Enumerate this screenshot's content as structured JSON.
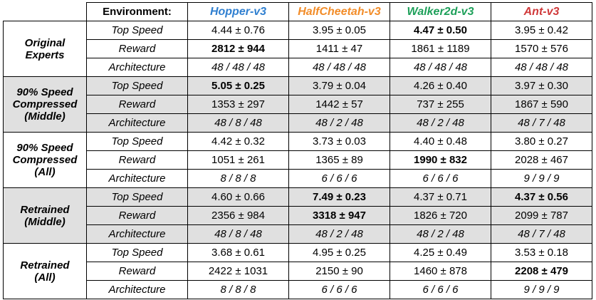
{
  "header": {
    "environment_label": "Environment:",
    "envs": [
      {
        "name": "Hopper-v3",
        "color": "#2f7fd0"
      },
      {
        "name": "HalfCheetah-v3",
        "color": "#f28c28"
      },
      {
        "name": "Walker2d-v3",
        "color": "#1ea05a"
      },
      {
        "name": "Ant-v3",
        "color": "#d0393a"
      }
    ]
  },
  "groups": [
    {
      "label": [
        "Original",
        "Experts"
      ],
      "shaded": false,
      "rows": [
        {
          "metric": "Top Speed",
          "cells": [
            {
              "v": "4.44 ± 0.76"
            },
            {
              "v": "3.95 ± 0.05"
            },
            {
              "v": "4.47 ± 0.50",
              "b": true
            },
            {
              "v": "3.95 ± 0.42"
            }
          ]
        },
        {
          "metric": "Reward",
          "cells": [
            {
              "v": "2812 ± 944",
              "b": true
            },
            {
              "v": "1411 ± 47"
            },
            {
              "v": "1861 ± 1189"
            },
            {
              "v": "1570 ± 576"
            }
          ]
        },
        {
          "metric": "Architecture",
          "arch": true,
          "cells": [
            {
              "v": "48 / 48 / 48"
            },
            {
              "v": "48 / 48 / 48"
            },
            {
              "v": "48 / 48 / 48"
            },
            {
              "v": "48 / 48 / 48"
            }
          ]
        }
      ]
    },
    {
      "label": [
        "90% Speed",
        "Compressed",
        "(Middle)"
      ],
      "shaded": true,
      "rows": [
        {
          "metric": "Top Speed",
          "cells": [
            {
              "v": "5.05 ± 0.25",
              "b": true
            },
            {
              "v": "3.79 ± 0.04"
            },
            {
              "v": "4.26 ± 0.40"
            },
            {
              "v": "3.97 ± 0.30"
            }
          ]
        },
        {
          "metric": "Reward",
          "cells": [
            {
              "v": "1353 ± 297"
            },
            {
              "v": "1442 ± 57"
            },
            {
              "v": "737 ± 255"
            },
            {
              "v": "1867 ± 590"
            }
          ]
        },
        {
          "metric": "Architecture",
          "arch": true,
          "cells": [
            {
              "v": "48 / 8 / 48"
            },
            {
              "v": "48 / 2 / 48"
            },
            {
              "v": "48 / 2 / 48"
            },
            {
              "v": "48 / 7 / 48"
            }
          ]
        }
      ]
    },
    {
      "label": [
        "90% Speed",
        "Compressed",
        "(All)"
      ],
      "shaded": false,
      "rows": [
        {
          "metric": "Top Speed",
          "cells": [
            {
              "v": "4.42 ± 0.32"
            },
            {
              "v": "3.73 ± 0.03"
            },
            {
              "v": "4.40 ± 0.48"
            },
            {
              "v": "3.80 ± 0.27"
            }
          ]
        },
        {
          "metric": "Reward",
          "cells": [
            {
              "v": "1051 ± 261"
            },
            {
              "v": "1365 ± 89"
            },
            {
              "v": "1990 ± 832",
              "b": true
            },
            {
              "v": "2028 ± 467"
            }
          ]
        },
        {
          "metric": "Architecture",
          "arch": true,
          "cells": [
            {
              "v": "8 / 8 / 8"
            },
            {
              "v": "6 / 6 / 6"
            },
            {
              "v": "6 / 6 / 6"
            },
            {
              "v": "9 / 9 / 9"
            }
          ]
        }
      ]
    },
    {
      "label": [
        "Retrained",
        "(Middle)"
      ],
      "shaded": true,
      "rows": [
        {
          "metric": "Top Speed",
          "cells": [
            {
              "v": "4.60 ± 0.66"
            },
            {
              "v": "7.49 ± 0.23",
              "b": true
            },
            {
              "v": "4.37 ± 0.71"
            },
            {
              "v": "4.37 ± 0.56",
              "b": true
            }
          ]
        },
        {
          "metric": "Reward",
          "cells": [
            {
              "v": "2356 ± 984"
            },
            {
              "v": "3318 ± 947",
              "b": true
            },
            {
              "v": "1826 ± 720"
            },
            {
              "v": "2099 ± 787"
            }
          ]
        },
        {
          "metric": "Architecture",
          "arch": true,
          "cells": [
            {
              "v": "48 / 8 / 48"
            },
            {
              "v": "48 / 2 / 48"
            },
            {
              "v": "48 / 2 / 48"
            },
            {
              "v": "48 / 7 / 48"
            }
          ]
        }
      ]
    },
    {
      "label": [
        "Retrained",
        "(All)"
      ],
      "shaded": false,
      "rows": [
        {
          "metric": "Top Speed",
          "cells": [
            {
              "v": "3.68 ± 0.61"
            },
            {
              "v": "4.95 ± 0.25"
            },
            {
              "v": "4.25 ± 0.49"
            },
            {
              "v": "3.53 ± 0.18"
            }
          ]
        },
        {
          "metric": "Reward",
          "cells": [
            {
              "v": "2422 ± 1031"
            },
            {
              "v": "2150 ± 90"
            },
            {
              "v": "1460 ± 878"
            },
            {
              "v": "2208 ± 479",
              "b": true
            }
          ]
        },
        {
          "metric": "Architecture",
          "arch": true,
          "cells": [
            {
              "v": "8 / 8 / 8"
            },
            {
              "v": "6 / 6 / 6"
            },
            {
              "v": "6 / 6 / 6"
            },
            {
              "v": "9 / 9 / 9"
            }
          ]
        }
      ]
    }
  ]
}
